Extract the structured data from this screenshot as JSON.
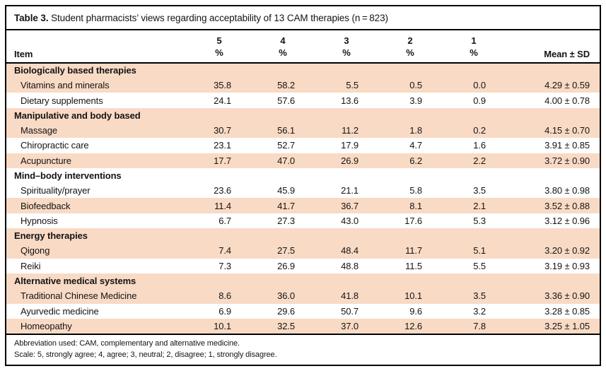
{
  "title": {
    "prefix": "Table 3.",
    "text": " Student pharmacists’ views regarding acceptability of 13 CAM therapies (n = 823)"
  },
  "colors": {
    "shaded_row": "#f9dac5",
    "border": "#000000",
    "text": "#141414"
  },
  "table": {
    "item_header": "Item",
    "rating_columns": [
      {
        "num": "5",
        "unit": "%"
      },
      {
        "num": "4",
        "unit": "%"
      },
      {
        "num": "3",
        "unit": "%"
      },
      {
        "num": "2",
        "unit": "%"
      },
      {
        "num": "1",
        "unit": "%"
      }
    ],
    "mean_header": "Mean ± SD",
    "sections": [
      {
        "category": "Biologically based therapies",
        "shaded": true,
        "rows": [
          {
            "label": "Vitamins and minerals",
            "values": [
              "35.8",
              "58.2",
              "5.5",
              "0.5",
              "0.0"
            ],
            "mean": "4.29 ± 0.59",
            "shaded": true
          },
          {
            "label": "Dietary supplements",
            "values": [
              "24.1",
              "57.6",
              "13.6",
              "3.9",
              "0.9"
            ],
            "mean": "4.00 ± 0.78",
            "shaded": false
          }
        ]
      },
      {
        "category": "Manipulative and body based",
        "shaded": true,
        "rows": [
          {
            "label": "Massage",
            "values": [
              "30.7",
              "56.1",
              "11.2",
              "1.8",
              "0.2"
            ],
            "mean": "4.15 ± 0.70",
            "shaded": true
          },
          {
            "label": "Chiropractic care",
            "values": [
              "23.1",
              "52.7",
              "17.9",
              "4.7",
              "1.6"
            ],
            "mean": "3.91 ± 0.85",
            "shaded": false
          },
          {
            "label": "Acupuncture",
            "values": [
              "17.7",
              "47.0",
              "26.9",
              "6.2",
              "2.2"
            ],
            "mean": "3.72 ± 0.90",
            "shaded": true
          }
        ]
      },
      {
        "category": "Mind–body interventions",
        "shaded": false,
        "rows": [
          {
            "label": "Spirituality/prayer",
            "values": [
              "23.6",
              "45.9",
              "21.1",
              "5.8",
              "3.5"
            ],
            "mean": "3.80 ± 0.98",
            "shaded": false
          },
          {
            "label": "Biofeedback",
            "values": [
              "11.4",
              "41.7",
              "36.7",
              "8.1",
              "2.1"
            ],
            "mean": "3.52 ± 0.88",
            "shaded": true
          },
          {
            "label": "Hypnosis",
            "values": [
              "6.7",
              "27.3",
              "43.0",
              "17.6",
              "5.3"
            ],
            "mean": "3.12 ± 0.96",
            "shaded": false
          }
        ]
      },
      {
        "category": "Energy therapies",
        "shaded": true,
        "rows": [
          {
            "label": "Qigong",
            "values": [
              "7.4",
              "27.5",
              "48.4",
              "11.7",
              "5.1"
            ],
            "mean": "3.20 ± 0.92",
            "shaded": true
          },
          {
            "label": "Reiki",
            "values": [
              "7.3",
              "26.9",
              "48.8",
              "11.5",
              "5.5"
            ],
            "mean": "3.19 ± 0.93",
            "shaded": false
          }
        ]
      },
      {
        "category": "Alternative medical systems",
        "shaded": true,
        "rows": [
          {
            "label": "Traditional Chinese Medicine",
            "values": [
              "8.6",
              "36.0",
              "41.8",
              "10.1",
              "3.5"
            ],
            "mean": "3.36 ± 0.90",
            "shaded": true
          },
          {
            "label": "Ayurvedic medicine",
            "values": [
              "6.9",
              "29.6",
              "50.7",
              "9.6",
              "3.2"
            ],
            "mean": "3.28 ± 0.85",
            "shaded": false
          },
          {
            "label": "Homeopathy",
            "values": [
              "10.1",
              "32.5",
              "37.0",
              "12.6",
              "7.8"
            ],
            "mean": "3.25 ± 1.05",
            "shaded": true
          }
        ]
      }
    ]
  },
  "footnotes": {
    "abbreviation": "Abbreviation used: CAM, complementary and alternative medicine.",
    "scale": "Scale: 5, strongly agree; 4, agree; 3, neutral; 2, disagree; 1, strongly disagree."
  }
}
